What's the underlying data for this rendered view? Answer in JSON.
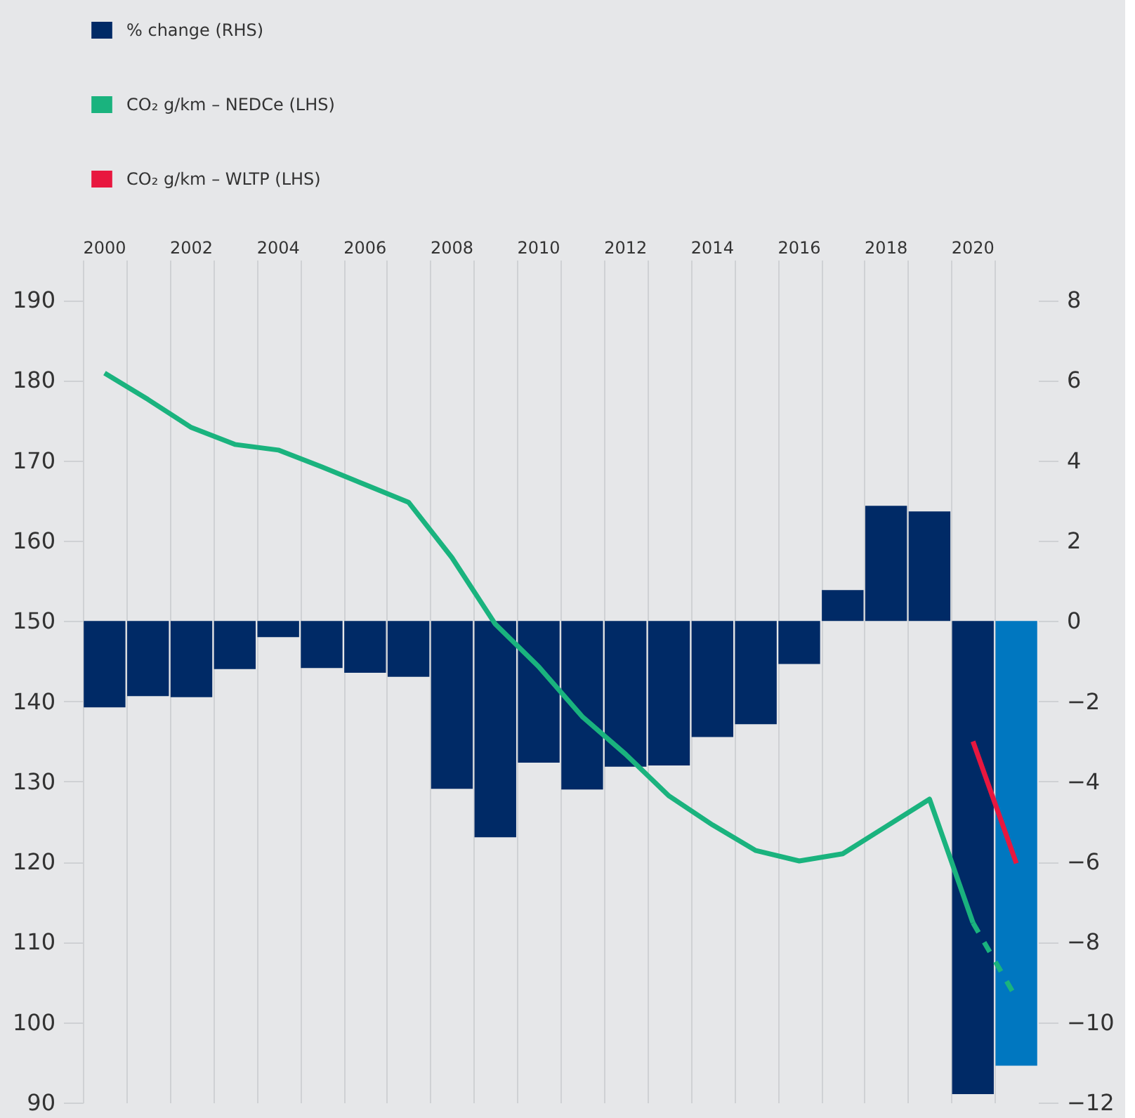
{
  "chart_data": {
    "type": "bar",
    "categories": [
      "2000",
      null,
      "2002",
      null,
      "2004",
      null,
      "2006",
      null,
      "2008",
      null,
      "2010",
      null,
      "2012",
      null,
      "2014",
      null,
      "2016",
      null,
      "2018",
      null,
      "2020",
      null
    ],
    "series": [
      {
        "name": "% change (RHS)",
        "axis": "y2",
        "color": "#002a66",
        "colors": [
          "#002a66",
          "#002a66",
          "#002a66",
          "#002a66",
          "#002a66",
          "#002a66",
          "#002a66",
          "#002a66",
          "#002a66",
          "#002a66",
          "#002a66",
          "#002a66",
          "#002a66",
          "#002a66",
          "#002a66",
          "#002a66",
          "#002a66",
          "#002a66",
          "#002a66",
          "#002a66",
          "#002a66",
          "#0077c0"
        ],
        "values": [
          -2.15,
          -1.87,
          -1.9,
          -1.2,
          -0.4,
          -1.17,
          -1.29,
          -1.39,
          -4.18,
          -5.39,
          -3.53,
          -4.2,
          -3.63,
          -3.6,
          -2.89,
          -2.57,
          -1.07,
          0.77,
          2.87,
          2.73,
          -11.79,
          -11.08
        ]
      },
      {
        "name": "CO₂ g/km – NEDCe (LHS)",
        "type": "line",
        "axis": "y",
        "color": "#1ab37e",
        "line_style": "solid",
        "values": [
          180.9,
          177.6,
          174.1,
          172.0,
          171.3,
          169.2,
          167.0,
          164.8,
          157.9,
          149.6,
          144.3,
          138.1,
          133.4,
          128.2,
          124.6,
          121.4,
          120.1,
          121.0,
          124.4,
          127.8,
          112.4,
          null
        ]
      },
      {
        "type": "line",
        "axis": "y",
        "color": "#1ab37e",
        "line_style": "dashed",
        "values": [
          null,
          null,
          null,
          null,
          null,
          null,
          null,
          null,
          null,
          null,
          null,
          null,
          null,
          null,
          null,
          null,
          null,
          null,
          null,
          null,
          112.4,
          103.0
        ]
      },
      {
        "name": "CO₂ g/km – WLTP (LHS)",
        "type": "line",
        "axis": "y",
        "color": "#e8173f",
        "line_style": "solid",
        "values": [
          null,
          null,
          null,
          null,
          null,
          null,
          null,
          null,
          null,
          null,
          null,
          null,
          null,
          null,
          null,
          null,
          null,
          null,
          null,
          null,
          135.0,
          119.8
        ]
      }
    ],
    "ylim": [
      90,
      195
    ],
    "yticks": [
      90,
      100,
      110,
      120,
      130,
      140,
      150,
      160,
      170,
      180,
      190
    ],
    "y2lim": [
      -12,
      9
    ],
    "y2ticks": [
      -12,
      -10,
      -8,
      -6,
      -4,
      -2,
      0,
      2,
      4,
      6,
      8
    ],
    "grid": "x",
    "legend": "top left"
  }
}
